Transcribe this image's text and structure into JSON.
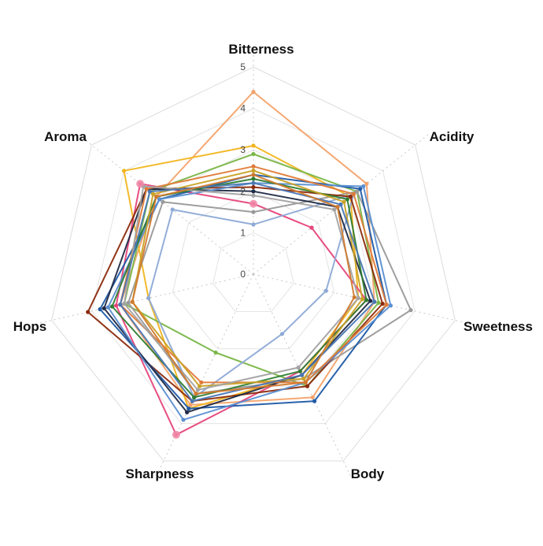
{
  "chart_data": {
    "type": "radar",
    "axes": [
      "Bitterness",
      "Acidity",
      "Sweetness",
      "Body",
      "Sharpness",
      "Hops",
      "Aroma"
    ],
    "rlim": [
      0,
      5
    ],
    "ticks": [
      "0",
      "1",
      "2",
      "3",
      "4",
      "5"
    ],
    "grid": true,
    "series": [
      {
        "color": "#f4a36c",
        "values": [
          4.4,
          3.5,
          3.0,
          3.3,
          3.5,
          3.3,
          3.0
        ]
      },
      {
        "color": "#f2b51f",
        "values": [
          3.1,
          3.0,
          2.6,
          2.7,
          3.6,
          2.6,
          4.0
        ]
      },
      {
        "color": "#7ab648",
        "values": [
          2.9,
          3.2,
          3.1,
          3.0,
          2.1,
          3.2,
          3.2
        ]
      },
      {
        "color": "#e6447a",
        "values": [
          1.7,
          1.8,
          2.8,
          2.6,
          4.3,
          3.4,
          3.5
        ]
      },
      {
        "color": "#8da9d6",
        "values": [
          1.2,
          3.1,
          1.8,
          1.6,
          3.3,
          2.6,
          2.5
        ]
      },
      {
        "color": "#999999",
        "values": [
          1.5,
          3.2,
          3.9,
          2.8,
          3.2,
          3.1,
          2.8
        ]
      },
      {
        "color": "#8b2a0c",
        "values": [
          2.1,
          3.0,
          3.2,
          3.0,
          3.4,
          4.1,
          3.3
        ]
      },
      {
        "color": "#1f5aa6",
        "values": [
          2.4,
          3.3,
          3.3,
          3.4,
          3.6,
          3.8,
          2.9
        ]
      },
      {
        "color": "#1f2a44",
        "values": [
          2.0,
          2.6,
          2.9,
          2.7,
          3.7,
          3.7,
          3.3
        ]
      },
      {
        "color": "#5b8fd1",
        "values": [
          2.2,
          3.4,
          3.4,
          2.9,
          3.9,
          3.6,
          2.9
        ]
      },
      {
        "color": "#e07b39",
        "values": [
          2.6,
          3.1,
          3.3,
          2.9,
          2.9,
          3.3,
          3.3
        ]
      },
      {
        "color": "#2f7d32",
        "values": [
          2.3,
          2.9,
          2.8,
          2.6,
          3.3,
          3.5,
          3.0
        ]
      },
      {
        "color": "#c9a227",
        "values": [
          2.5,
          2.8,
          2.7,
          2.8,
          3.0,
          3.0,
          3.1
        ]
      },
      {
        "color": "#a3a3a3",
        "values": [
          1.9,
          2.5,
          2.6,
          2.5,
          3.1,
          3.2,
          3.4
        ]
      },
      {
        "color": "#4a77b4",
        "values": [
          2.2,
          2.7,
          3.0,
          2.7,
          3.4,
          3.3,
          3.2
        ]
      },
      {
        "color": "#d17a2e",
        "values": [
          2.4,
          2.6,
          2.5,
          2.9,
          3.2,
          3.0,
          3.0
        ]
      }
    ]
  }
}
